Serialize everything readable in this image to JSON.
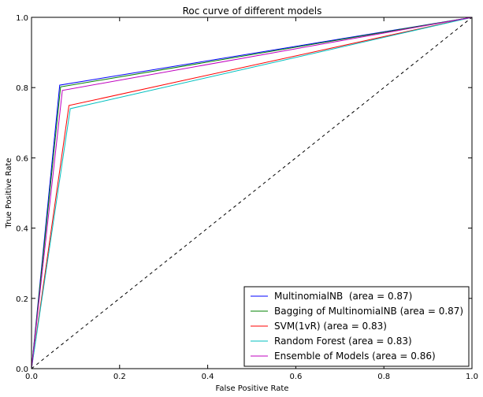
{
  "chart_data": {
    "type": "line",
    "title": "Roc curve of different models",
    "xlabel": "False Positive Rate",
    "ylabel": "True Positive Rate",
    "xlim": [
      0.0,
      1.0
    ],
    "ylim": [
      0.0,
      1.0
    ],
    "xticks": [
      0.0,
      0.2,
      0.4,
      0.6,
      0.8,
      1.0
    ],
    "yticks": [
      0.0,
      0.2,
      0.4,
      0.6,
      0.8,
      1.0
    ],
    "xtick_labels": [
      "0.0",
      "0.2",
      "0.4",
      "0.6",
      "0.8",
      "1.0"
    ],
    "ytick_labels": [
      "0.0",
      "0.2",
      "0.4",
      "0.6",
      "0.8",
      "1.0"
    ],
    "grid": false,
    "legend_position": "bottom-right",
    "diagonal": {
      "x": [
        0,
        1
      ],
      "y": [
        0,
        1
      ],
      "color": "#000000",
      "style": "dashed"
    },
    "series": [
      {
        "name": "MultinomialNB  (area = 0.87)",
        "color": "#0000ff",
        "x": [
          0,
          0.064,
          1
        ],
        "y": [
          0,
          0.807,
          1
        ]
      },
      {
        "name": "Bagging of MultinomialNB (area = 0.87)",
        "color": "#008000",
        "x": [
          0,
          0.066,
          1
        ],
        "y": [
          0,
          0.802,
          1
        ]
      },
      {
        "name": "SVM(1vR) (area = 0.83)",
        "color": "#ff0000",
        "x": [
          0,
          0.085,
          1
        ],
        "y": [
          0,
          0.749,
          1
        ]
      },
      {
        "name": "Random Forest (area = 0.83)",
        "color": "#00bfbf",
        "x": [
          0,
          0.088,
          1
        ],
        "y": [
          0,
          0.74,
          1
        ]
      },
      {
        "name": "Ensemble of Models (area = 0.86)",
        "color": "#bf00bf",
        "x": [
          0,
          0.07,
          1
        ],
        "y": [
          0,
          0.792,
          1
        ]
      }
    ]
  }
}
